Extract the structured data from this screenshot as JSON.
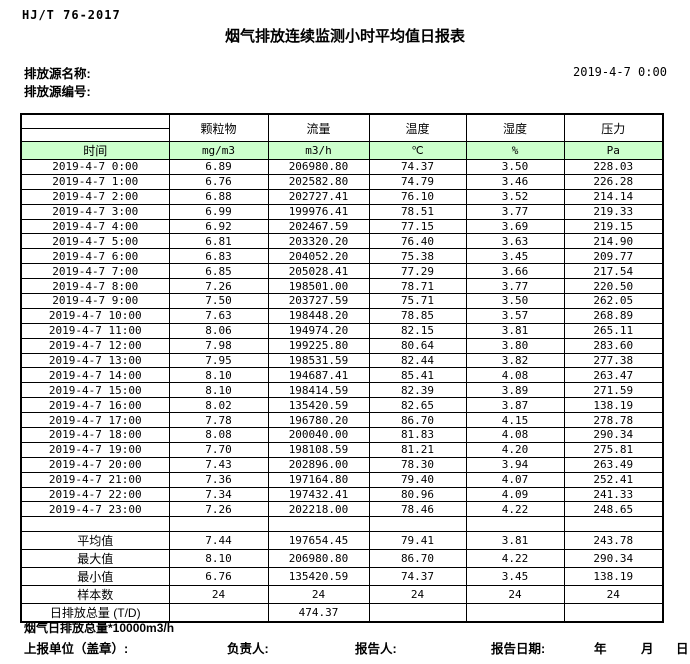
{
  "doc": {
    "standard": "HJ/T 76-2017",
    "title": "烟气排放连续监测小时平均值日报表",
    "source_name_label": "排放源名称:",
    "source_code_label": "排放源编号:",
    "datetime": "2019-4-7 0:00"
  },
  "colors": {
    "header_green": "#ccffcc",
    "border": "#000000"
  },
  "table": {
    "time_header": "时间",
    "columns": [
      "颗粒物",
      "流量",
      "温度",
      "湿度",
      "压力"
    ],
    "units": [
      "mg/m3",
      "m3/h",
      "℃",
      "%",
      "Pa"
    ],
    "rows": [
      {
        "time": "2019-4-7 0:00",
        "values": [
          "6.89",
          "206980.80",
          "74.37",
          "3.50",
          "228.03"
        ]
      },
      {
        "time": "2019-4-7 1:00",
        "values": [
          "6.76",
          "202582.80",
          "74.79",
          "3.46",
          "226.28"
        ]
      },
      {
        "time": "2019-4-7 2:00",
        "values": [
          "6.88",
          "202727.41",
          "76.10",
          "3.52",
          "214.14"
        ]
      },
      {
        "time": "2019-4-7 3:00",
        "values": [
          "6.99",
          "199976.41",
          "78.51",
          "3.77",
          "219.33"
        ]
      },
      {
        "time": "2019-4-7 4:00",
        "values": [
          "6.92",
          "202467.59",
          "77.15",
          "3.69",
          "219.15"
        ]
      },
      {
        "time": "2019-4-7 5:00",
        "values": [
          "6.81",
          "203320.20",
          "76.40",
          "3.63",
          "214.90"
        ]
      },
      {
        "time": "2019-4-7 6:00",
        "values": [
          "6.83",
          "204052.20",
          "75.38",
          "3.45",
          "209.77"
        ]
      },
      {
        "time": "2019-4-7 7:00",
        "values": [
          "6.85",
          "205028.41",
          "77.29",
          "3.66",
          "217.54"
        ]
      },
      {
        "time": "2019-4-7 8:00",
        "values": [
          "7.26",
          "198501.00",
          "78.71",
          "3.77",
          "220.50"
        ]
      },
      {
        "time": "2019-4-7 9:00",
        "values": [
          "7.50",
          "203727.59",
          "75.71",
          "3.50",
          "262.05"
        ]
      },
      {
        "time": "2019-4-7 10:00",
        "values": [
          "7.63",
          "198448.20",
          "78.85",
          "3.57",
          "268.89"
        ]
      },
      {
        "time": "2019-4-7 11:00",
        "values": [
          "8.06",
          "194974.20",
          "82.15",
          "3.81",
          "265.11"
        ]
      },
      {
        "time": "2019-4-7 12:00",
        "values": [
          "7.98",
          "199225.80",
          "80.64",
          "3.80",
          "283.60"
        ]
      },
      {
        "time": "2019-4-7 13:00",
        "values": [
          "7.95",
          "198531.59",
          "82.44",
          "3.82",
          "277.38"
        ]
      },
      {
        "time": "2019-4-7 14:00",
        "values": [
          "8.10",
          "194687.41",
          "85.41",
          "4.08",
          "263.47"
        ]
      },
      {
        "time": "2019-4-7 15:00",
        "values": [
          "8.10",
          "198414.59",
          "82.39",
          "3.89",
          "271.59"
        ]
      },
      {
        "time": "2019-4-7 16:00",
        "values": [
          "8.02",
          "135420.59",
          "82.65",
          "3.87",
          "138.19"
        ]
      },
      {
        "time": "2019-4-7 17:00",
        "values": [
          "7.78",
          "196780.20",
          "86.70",
          "4.15",
          "278.78"
        ]
      },
      {
        "time": "2019-4-7 18:00",
        "values": [
          "8.08",
          "200040.00",
          "81.83",
          "4.08",
          "290.34"
        ]
      },
      {
        "time": "2019-4-7 19:00",
        "values": [
          "7.70",
          "198108.59",
          "81.21",
          "4.20",
          "275.81"
        ]
      },
      {
        "time": "2019-4-7 20:00",
        "values": [
          "7.43",
          "202896.00",
          "78.30",
          "3.94",
          "263.49"
        ]
      },
      {
        "time": "2019-4-7 21:00",
        "values": [
          "7.36",
          "197164.80",
          "79.40",
          "4.07",
          "252.41"
        ]
      },
      {
        "time": "2019-4-7 22:00",
        "values": [
          "7.34",
          "197432.41",
          "80.96",
          "4.09",
          "241.33"
        ]
      },
      {
        "time": "2019-4-7 23:00",
        "values": [
          "7.26",
          "202218.00",
          "78.46",
          "4.22",
          "248.65"
        ]
      }
    ],
    "summary": [
      {
        "label": "平均值",
        "values": [
          "7.44",
          "197654.45",
          "79.41",
          "3.81",
          "243.78"
        ]
      },
      {
        "label": "最大值",
        "values": [
          "8.10",
          "206980.80",
          "86.70",
          "4.22",
          "290.34"
        ]
      },
      {
        "label": "最小值",
        "values": [
          "6.76",
          "135420.59",
          "74.37",
          "3.45",
          "138.19"
        ]
      },
      {
        "label": "样本数",
        "values": [
          "24",
          "24",
          "24",
          "24",
          "24"
        ]
      },
      {
        "label": "日排放总量 (T/D)",
        "values": [
          "",
          "474.37",
          "",
          "",
          ""
        ]
      }
    ]
  },
  "footer": {
    "note": "烟气日排放总量*10000m3/h",
    "unit_label": "上报单位（盖章）:",
    "manager_label": "负责人:",
    "reporter_label": "报告人:",
    "report_date_label": "报告日期:",
    "year_label": "年",
    "month_label": "月",
    "day_label": "日"
  }
}
